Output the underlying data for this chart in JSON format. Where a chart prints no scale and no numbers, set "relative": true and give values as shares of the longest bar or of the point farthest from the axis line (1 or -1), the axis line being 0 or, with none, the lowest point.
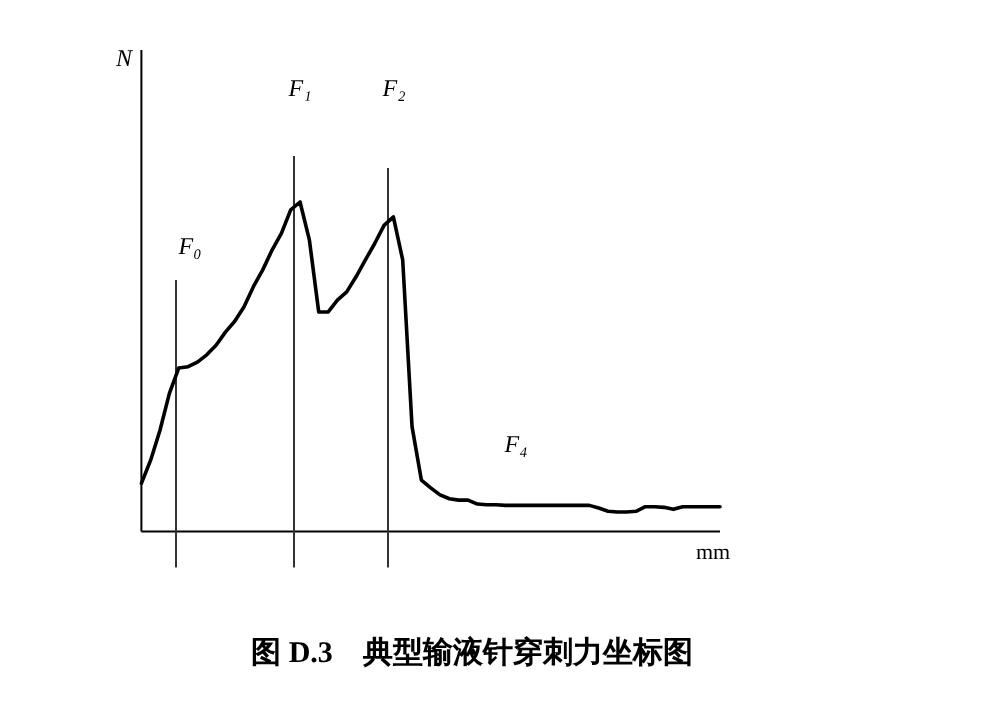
{
  "chart_data": {
    "type": "line",
    "relative": true,
    "title": "图 D.3　典型输液针穿刺力坐标图",
    "xlabel": "mm",
    "categories": [
      null,
      null,
      null,
      null,
      null,
      null,
      null,
      null,
      null,
      null,
      null,
      null,
      null,
      null,
      null,
      null,
      null,
      null,
      null,
      null,
      null,
      null,
      null,
      null,
      null,
      null,
      null,
      null,
      null,
      null,
      null,
      null,
      null,
      null,
      null,
      null,
      null,
      null,
      null,
      null,
      null,
      null,
      null,
      null,
      null,
      null,
      null,
      null,
      null,
      null,
      null,
      null,
      null,
      null,
      null,
      null,
      null,
      null,
      null,
      null,
      null,
      null,
      null
    ],
    "series": [
      {
        "color": "#000000",
        "values": [
          0.146,
          0.217,
          0.308,
          0.419,
          0.496,
          0.5,
          0.514,
          0.536,
          0.565,
          0.605,
          0.638,
          0.682,
          0.743,
          0.794,
          0.854,
          0.905,
          0.976,
          1,
          0.885,
          0.666,
          0.666,
          0.702,
          0.727,
          0.773,
          0.824,
          0.874,
          0.929,
          0.955,
          0.824,
          0.318,
          0.156,
          0.132,
          0.111,
          0.099,
          0.095,
          0.095,
          0.083,
          0.081,
          0.081,
          0.079,
          0.079,
          0.079,
          0.079,
          0.079,
          0.079,
          0.079,
          0.079,
          0.079,
          0.079,
          0.071,
          0.061,
          0.059,
          0.059,
          0.061,
          0.075,
          0.075,
          0.073,
          0.067,
          0.075,
          0.075,
          0.075,
          0.075,
          0.075
        ]
      }
    ],
    "annotations": [
      "F₀",
      "F₁",
      "F₂",
      "F₄",
      "N"
    ]
  }
}
